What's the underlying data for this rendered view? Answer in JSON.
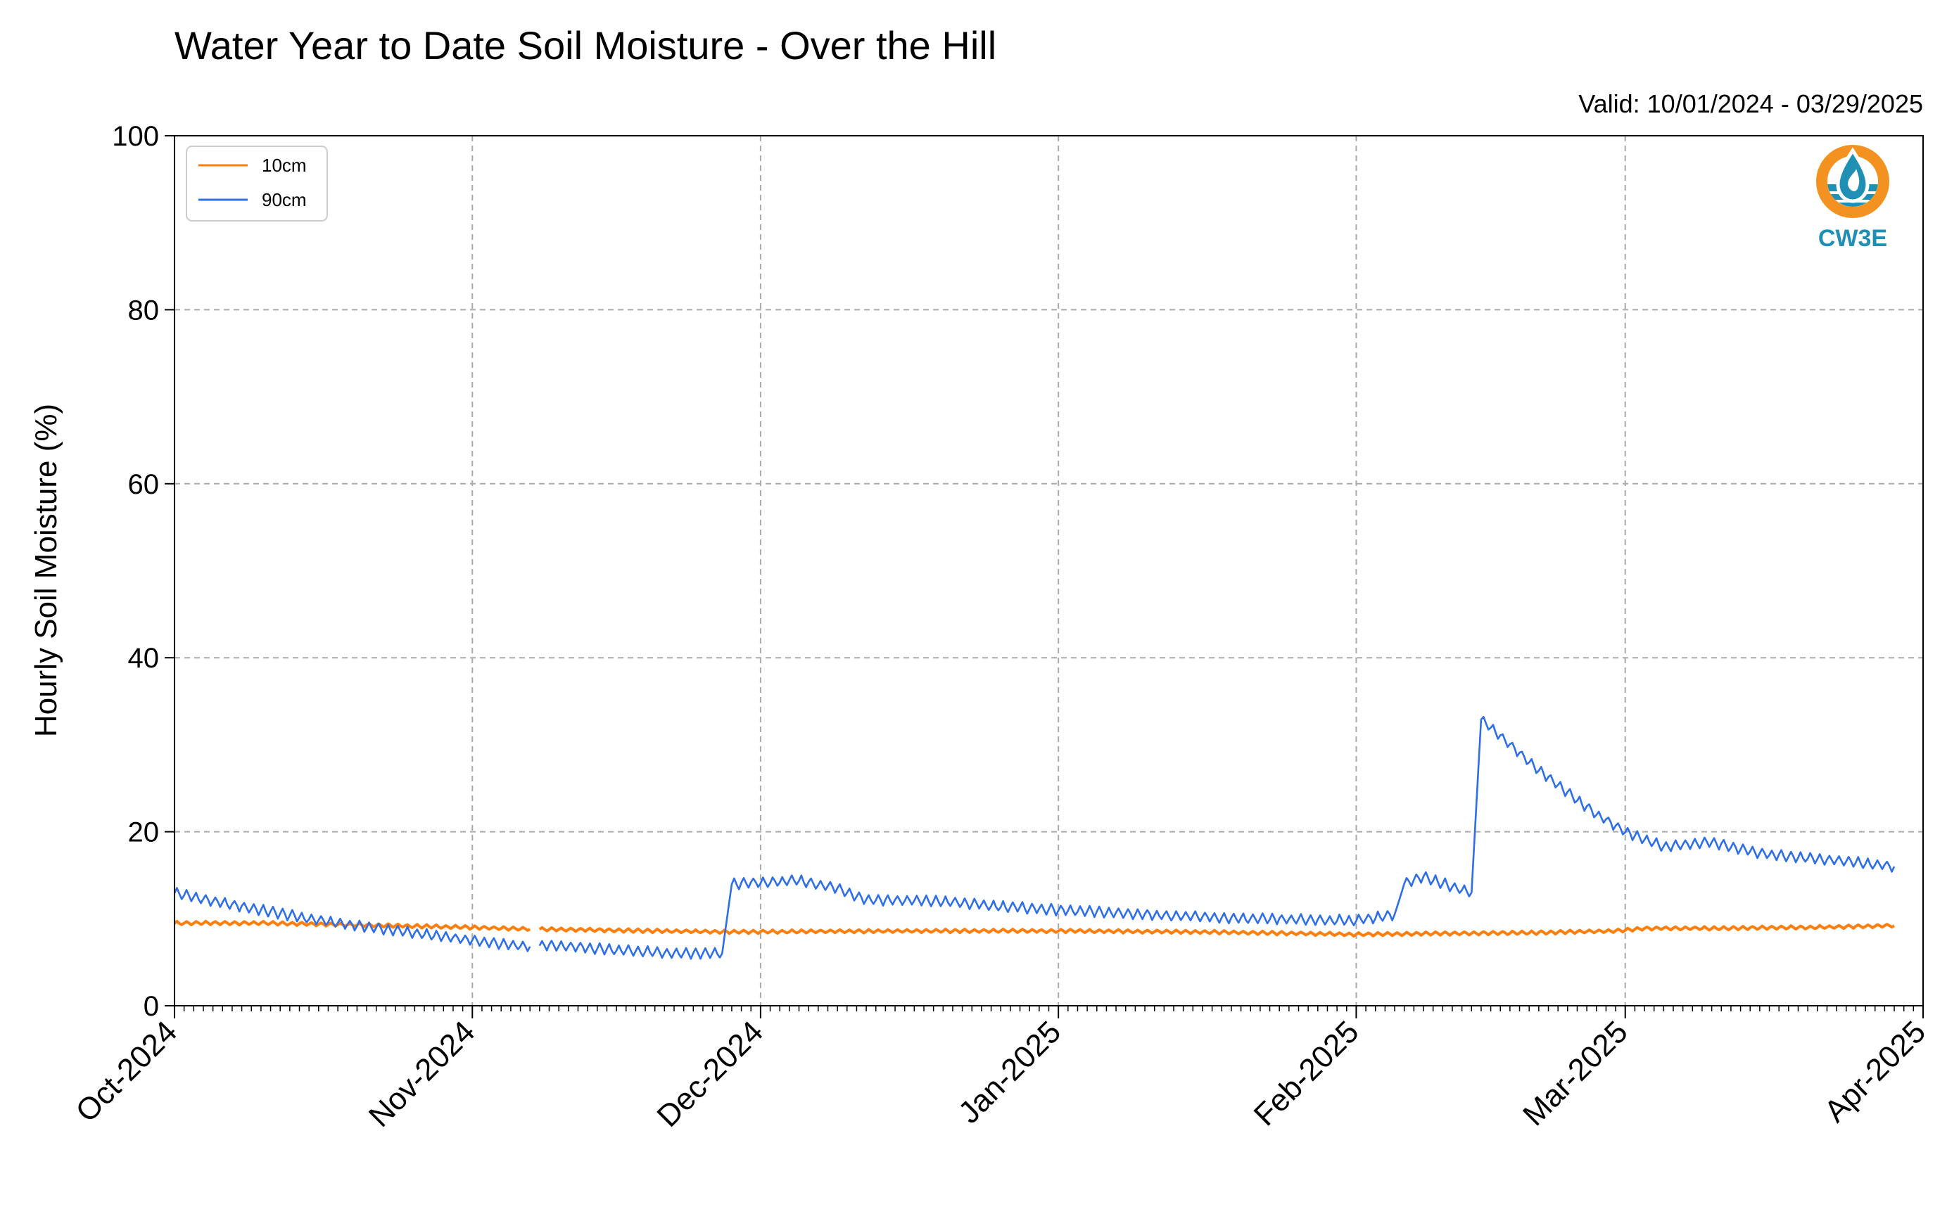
{
  "chart_data": {
    "type": "line",
    "title": "Water Year to Date Soil Moisture - Over the Hill",
    "subtitle": "Valid: 10/01/2024 - 03/29/2025",
    "xlabel": "",
    "ylabel": "Hourly Soil Moisture (%)",
    "xlim": [
      "2024-10-01",
      "2025-04-01"
    ],
    "ylim": [
      0,
      100
    ],
    "yticks": [
      0,
      20,
      40,
      60,
      80,
      100
    ],
    "xticks": [
      {
        "date": "2024-10-01",
        "label": "Oct-2024"
      },
      {
        "date": "2024-11-01",
        "label": "Nov-2024"
      },
      {
        "date": "2024-12-01",
        "label": "Dec-2024"
      },
      {
        "date": "2025-01-01",
        "label": "Jan-2025"
      },
      {
        "date": "2025-02-01",
        "label": "Feb-2025"
      },
      {
        "date": "2025-03-01",
        "label": "Mar-2025"
      },
      {
        "date": "2025-04-01",
        "label": "Apr-2025"
      }
    ],
    "grid": true,
    "legend_position": "top-left",
    "series": [
      {
        "name": "10cm",
        "color": "#ff7f0e",
        "points": [
          [
            "2024-10-01",
            9.5
          ],
          [
            "2024-10-10",
            9.5
          ],
          [
            "2024-10-20",
            9.3
          ],
          [
            "2024-10-28",
            9.1
          ],
          [
            "2024-11-01",
            9.0
          ],
          [
            "2024-11-07",
            8.8
          ],
          null,
          [
            "2024-11-08",
            8.8
          ],
          [
            "2024-11-20",
            8.6
          ],
          [
            "2024-11-27",
            8.5
          ],
          [
            "2024-12-01",
            8.5
          ],
          [
            "2024-12-15",
            8.6
          ],
          [
            "2025-01-01",
            8.6
          ],
          [
            "2025-01-15",
            8.5
          ],
          [
            "2025-02-01",
            8.2
          ],
          [
            "2025-02-10",
            8.3
          ],
          [
            "2025-02-20",
            8.4
          ],
          [
            "2025-02-28",
            8.6
          ],
          [
            "2025-03-03",
            8.9
          ],
          [
            "2025-03-10",
            8.9
          ],
          [
            "2025-03-20",
            9.0
          ],
          [
            "2025-03-29",
            9.2
          ]
        ]
      },
      {
        "name": "90cm",
        "color": "#2e6fe8",
        "points": [
          [
            "2024-10-01",
            13.0
          ],
          [
            "2024-10-05",
            12.0
          ],
          [
            "2024-10-10",
            11.0
          ],
          [
            "2024-10-15",
            10.0
          ],
          [
            "2024-10-20",
            9.2
          ],
          [
            "2024-10-25",
            8.5
          ],
          [
            "2024-11-01",
            7.5
          ],
          [
            "2024-11-07",
            6.8
          ],
          null,
          [
            "2024-11-08",
            7.0
          ],
          [
            "2024-11-15",
            6.5
          ],
          [
            "2024-11-22",
            6.0
          ],
          [
            "2024-11-27",
            6.0
          ],
          [
            "2024-11-28",
            14.0
          ],
          [
            "2024-12-02",
            14.2
          ],
          [
            "2024-12-05",
            14.4
          ],
          [
            "2024-12-09",
            13.5
          ],
          [
            "2024-12-12",
            12.2
          ],
          [
            "2024-12-20",
            12.0
          ],
          [
            "2024-12-25",
            11.5
          ],
          [
            "2025-01-01",
            11.0
          ],
          [
            "2025-01-10",
            10.5
          ],
          [
            "2025-01-20",
            10.0
          ],
          [
            "2025-02-01",
            9.8
          ],
          [
            "2025-02-05",
            10.5
          ],
          [
            "2025-02-06",
            14.0
          ],
          [
            "2025-02-08",
            14.8
          ],
          [
            "2025-02-13",
            13.0
          ],
          [
            "2025-02-14",
            33.0
          ],
          [
            "2025-02-16",
            31.0
          ],
          [
            "2025-02-19",
            28.0
          ],
          [
            "2025-02-23",
            24.5
          ],
          [
            "2025-02-26",
            22.0
          ],
          [
            "2025-03-01",
            20.0
          ],
          [
            "2025-03-05",
            18.3
          ],
          [
            "2025-03-10",
            18.8
          ],
          [
            "2025-03-15",
            17.5
          ],
          [
            "2025-03-20",
            17.0
          ],
          [
            "2025-03-25",
            16.5
          ],
          [
            "2025-03-29",
            16.0
          ]
        ]
      }
    ]
  },
  "logo": {
    "text": "CW3E",
    "icon": "water-drop-sun-icon",
    "ring_color": "#f39221",
    "water_color": "#1f8fb4"
  }
}
